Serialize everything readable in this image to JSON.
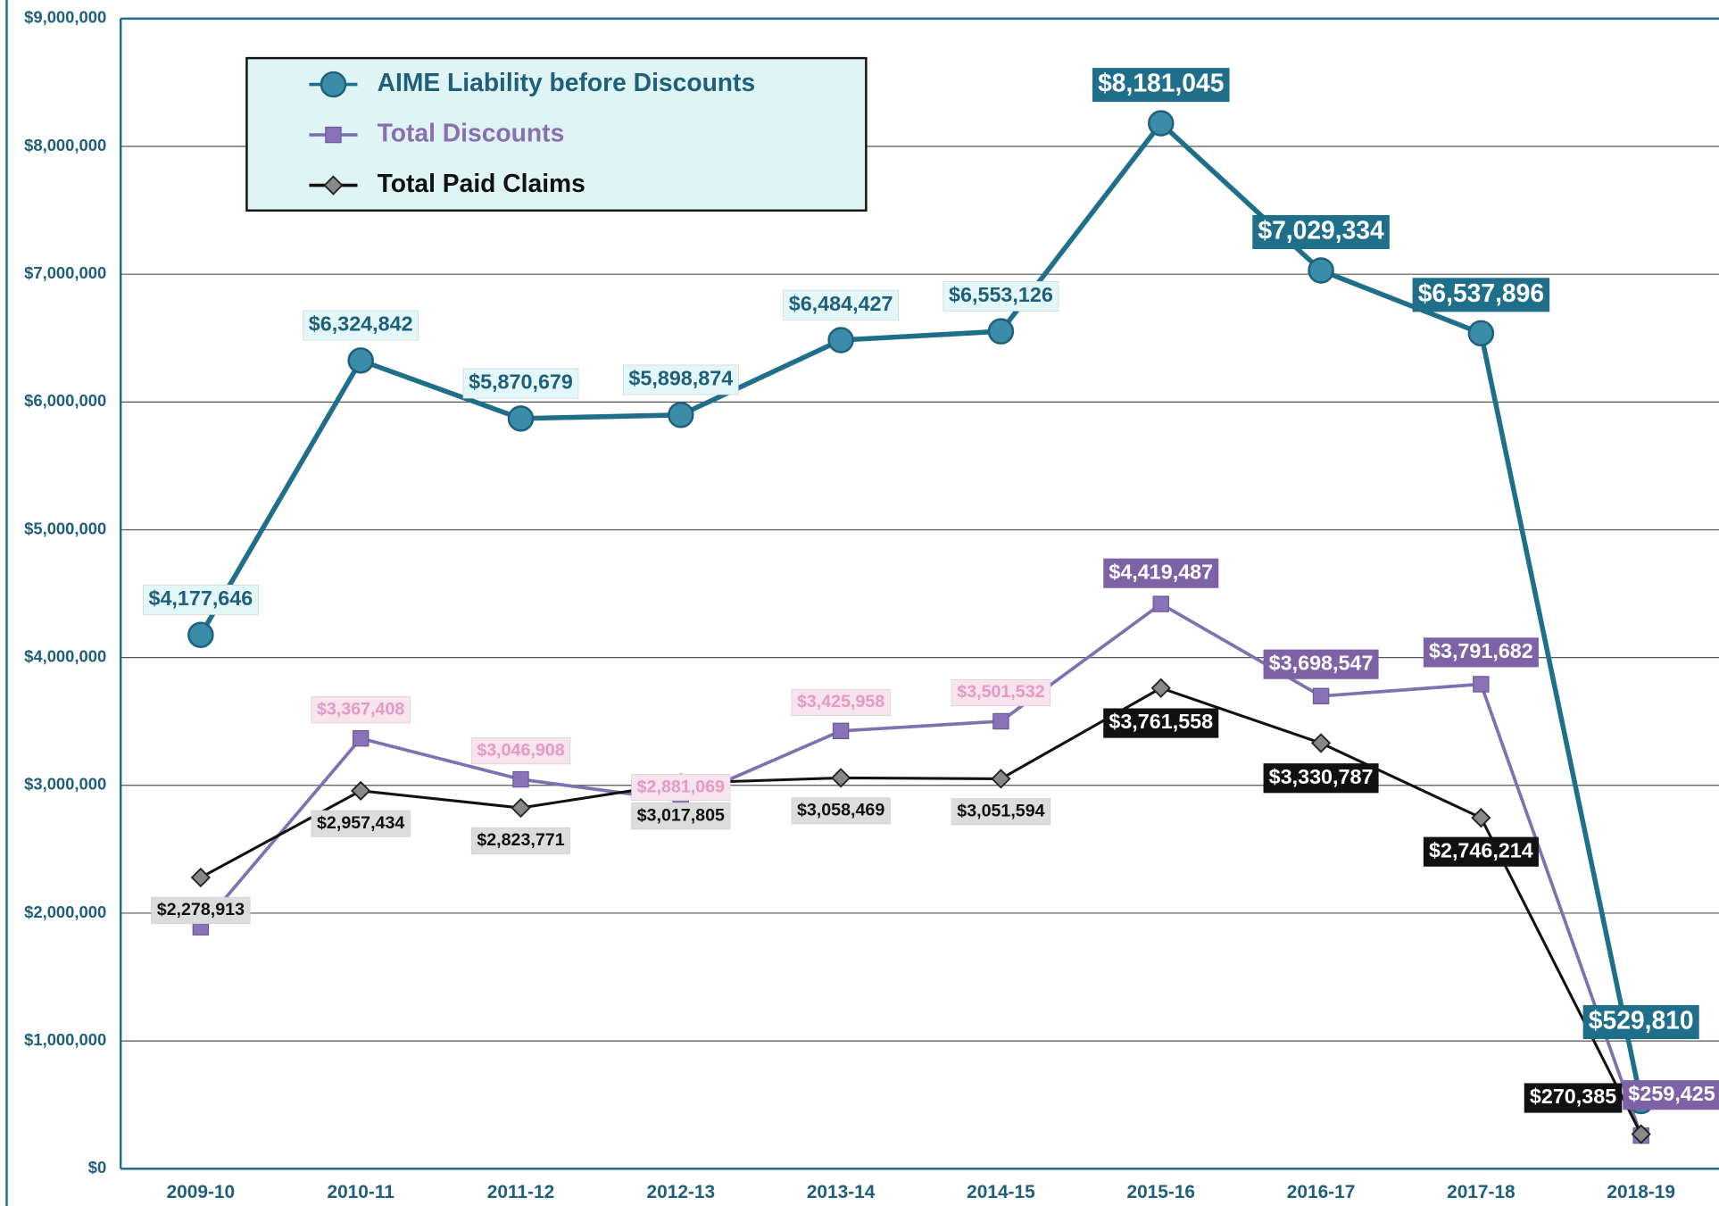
{
  "chart_data": {
    "type": "line",
    "categories": [
      "2009-10",
      "2010-11",
      "2011-12",
      "2012-13",
      "2013-14",
      "2014-15",
      "2015-16",
      "2016-17",
      "2017-18",
      "2018-19"
    ],
    "series": [
      {
        "name": "AIME Liability before Discounts",
        "color": "#1f6f8b",
        "marker": "circle",
        "values": [
          4177646,
          6324842,
          5870679,
          5898874,
          6484427,
          6553126,
          8181045,
          7029334,
          6537896,
          529810
        ],
        "value_labels": [
          "$4,177,646",
          "$6,324,842",
          "$5,870,679",
          "$5,898,874",
          "$6,484,427",
          "$6,553,126",
          "$8,181,045",
          "$7,029,334",
          "$6,537,896",
          "$529,810"
        ]
      },
      {
        "name": "Total Discounts",
        "color": "#7d71b0",
        "marker": "square",
        "values": [
          1890000,
          3367408,
          3046908,
          2881069,
          3425958,
          3501532,
          4419487,
          3698547,
          3791682,
          259425
        ],
        "value_labels": [
          null,
          "$3,367,408",
          "$3,046,908",
          "$2,881,069",
          "$3,425,958",
          "$3,501,532",
          "$4,419,487",
          "$3,698,547",
          "$3,791,682",
          "$259,425"
        ]
      },
      {
        "name": "Total Paid Claims",
        "color": "#111111",
        "marker": "diamond",
        "values": [
          2278913,
          2957434,
          2823771,
          3017805,
          3058469,
          3051594,
          3761558,
          3330787,
          2746214,
          270385
        ],
        "value_labels": [
          "$2,278,913",
          "$2,957,434",
          "$2,823,771",
          "$3,017,805",
          "$3,058,469",
          "$3,051,594",
          "$3,761,558",
          "$3,330,787",
          "$2,746,214",
          "$270,385"
        ]
      }
    ],
    "ylim": [
      0,
      9000000
    ],
    "yticks": [
      {
        "value": 0,
        "label": "$0"
      },
      {
        "value": 1000000,
        "label": "$1,000,000"
      },
      {
        "value": 2000000,
        "label": "$2,000,000"
      },
      {
        "value": 3000000,
        "label": "$3,000,000"
      },
      {
        "value": 4000000,
        "label": "$4,000,000"
      },
      {
        "value": 5000000,
        "label": "$5,000,000"
      },
      {
        "value": 6000000,
        "label": "$6,000,000"
      },
      {
        "value": 7000000,
        "label": "$7,000,000"
      },
      {
        "value": 8000000,
        "label": "$8,000,000"
      },
      {
        "value": 9000000,
        "label": "$9,000,000"
      }
    ],
    "grid": true,
    "legend": "upper left"
  }
}
